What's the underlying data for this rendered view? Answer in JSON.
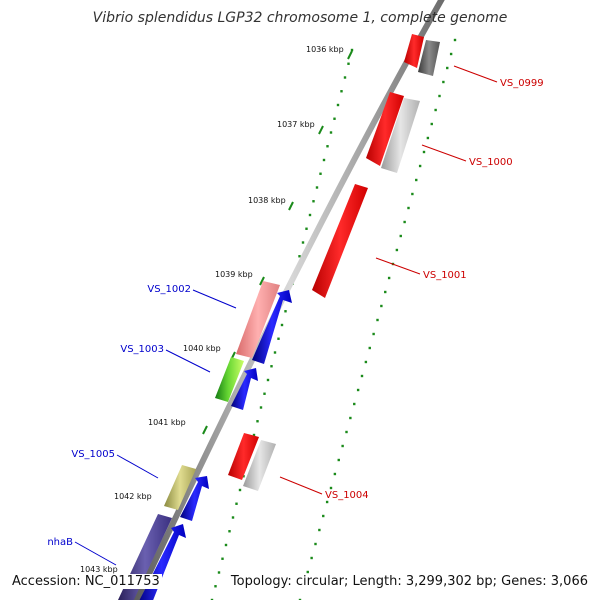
{
  "title": "Vibrio splendidus LGP32 chromosome 1, complete genome",
  "footer": {
    "accession": "Accession: NC_011753",
    "summary": "Topology: circular; Length: 3,299,302 bp; Genes: 3,066"
  },
  "colors": {
    "backbone": "#8a8a8a",
    "tick": "#1a8a1a",
    "forward_label": "#0000cc",
    "reverse_label": "#cc0000"
  },
  "kbp_labels": [
    "1036 kbp",
    "1037 kbp",
    "1038 kbp",
    "1039 kbp",
    "1040 kbp",
    "1041 kbp",
    "1042 kbp",
    "1043 kbp"
  ],
  "genes": [
    {
      "name": "VS_0999",
      "strand": "reverse"
    },
    {
      "name": "VS_1000",
      "strand": "reverse"
    },
    {
      "name": "VS_1001",
      "strand": "reverse"
    },
    {
      "name": "VS_1002",
      "strand": "forward"
    },
    {
      "name": "VS_1003",
      "strand": "forward"
    },
    {
      "name": "VS_1004",
      "strand": "reverse"
    },
    {
      "name": "VS_1005",
      "strand": "forward"
    },
    {
      "name": "nhaB",
      "strand": "forward"
    }
  ]
}
